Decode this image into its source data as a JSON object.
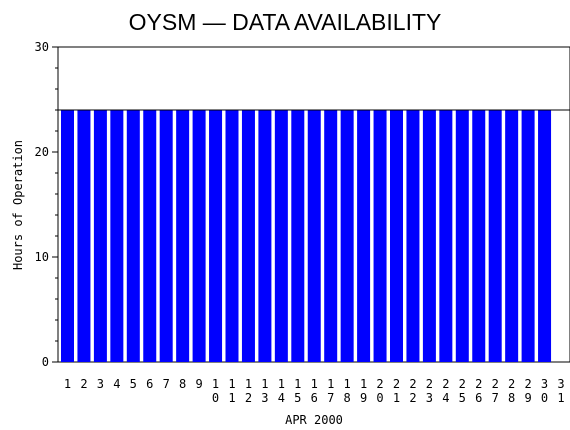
{
  "chart_data": {
    "type": "bar",
    "title": "OYSM — DATA AVAILABILITY",
    "xlabel": "APR 2000",
    "ylabel": "Hours of Operation",
    "ylim": [
      0,
      30
    ],
    "yticks": [
      0,
      10,
      20,
      30
    ],
    "reference_line": 24,
    "categories": [
      "1",
      "2",
      "3",
      "4",
      "5",
      "6",
      "7",
      "8",
      "9",
      "10",
      "11",
      "12",
      "13",
      "14",
      "15",
      "16",
      "17",
      "18",
      "19",
      "20",
      "21",
      "22",
      "23",
      "24",
      "25",
      "26",
      "27",
      "28",
      "29",
      "30",
      "31"
    ],
    "values": [
      24,
      24,
      24,
      24,
      24,
      24,
      24,
      24,
      24,
      24,
      24,
      24,
      24,
      24,
      24,
      24,
      24,
      24,
      24,
      24,
      24,
      24,
      24,
      24,
      24,
      24,
      24,
      24,
      24,
      24,
      0
    ],
    "bar_color": "#0000ff",
    "grid": false,
    "legend": "none"
  }
}
